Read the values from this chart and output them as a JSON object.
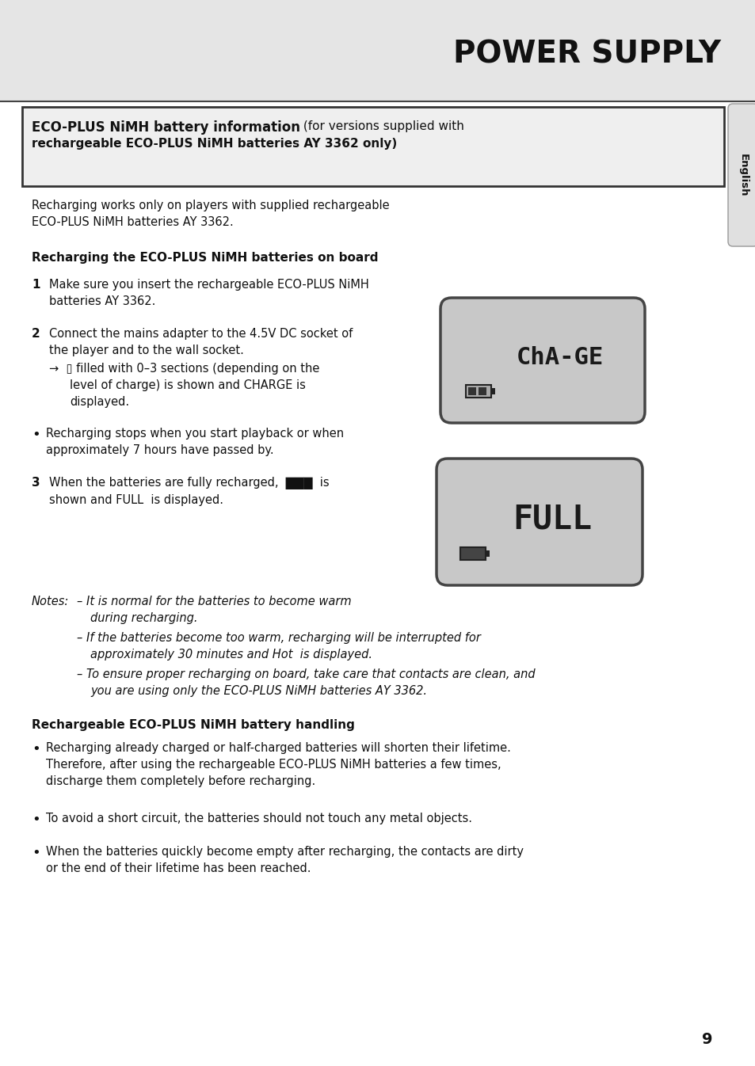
{
  "title": "POWER SUPPLY",
  "sidebar_text": "English",
  "box_title_bold": "ECO-PLUS NiMH battery information",
  "box_title_normal": " (for versions supplied with",
  "box_line2": "rechargeable ECO-PLUS NiMH batteries AY 3362 only)",
  "intro": "Recharging works only on players with supplied rechargeable\nECO-PLUS NiMH batteries AY 3362.",
  "section1": "Recharging the ECO-PLUS NiMH batteries on board",
  "s1_text": "Make sure you insert the rechargeable ECO-PLUS NiMH\nbatteries AY 3362.",
  "s2_text": "Connect the mains adapter to the 4.5V DC socket of\nthe player and to the wall socket.",
  "s2_arrow": "→",
  "s2_sub1": " filled with 0–3 sections (depending on the",
  "s2_sub2": "level of charge) is shown and CHARGE is",
  "s2_sub3": "displayed.",
  "bullet1": "Recharging stops when you start playback or when\napproximately 7 hours have passed by.",
  "s3_text1": "When the batteries are fully recharged,",
  "s3_text2": "is\nshown and FULL  is displayed.",
  "notes_label": "Notes:",
  "note1a": "– It is normal for the batteries to become warm",
  "note1b": "during recharging.",
  "note2a": "– If the batteries become too warm, recharging will be interrupted for",
  "note2b": "approximately 30 minutes and Hot  is displayed.",
  "note3a": "– To ensure proper recharging on board, take care that contacts are clean, and",
  "note3b": "you are using only the ECO-PLUS NiMH batteries AY 3362.",
  "section2": "Rechargeable ECO-PLUS NiMH battery handling",
  "b2": "Recharging already charged or half-charged batteries will shorten their lifetime.\nTherefore, after using the rechargeable ECO-PLUS NiMH batteries a few times,\ndischarge them completely before recharging.",
  "b3": "To avoid a short circuit, the batteries should not touch any metal objects.",
  "b4": "When the batteries quickly become empty after recharging, the contacts are dirty\nor the end of their lifetime has been reached.",
  "page_num": "9",
  "header_bg": "#e5e5e5",
  "body_bg": "#ffffff",
  "text_color": "#111111",
  "box_bg": "#efefef",
  "box_border": "#333333",
  "sidebar_bg": "#e0e0e0",
  "display_bg": "#c8c8c8",
  "display_border": "#555555"
}
